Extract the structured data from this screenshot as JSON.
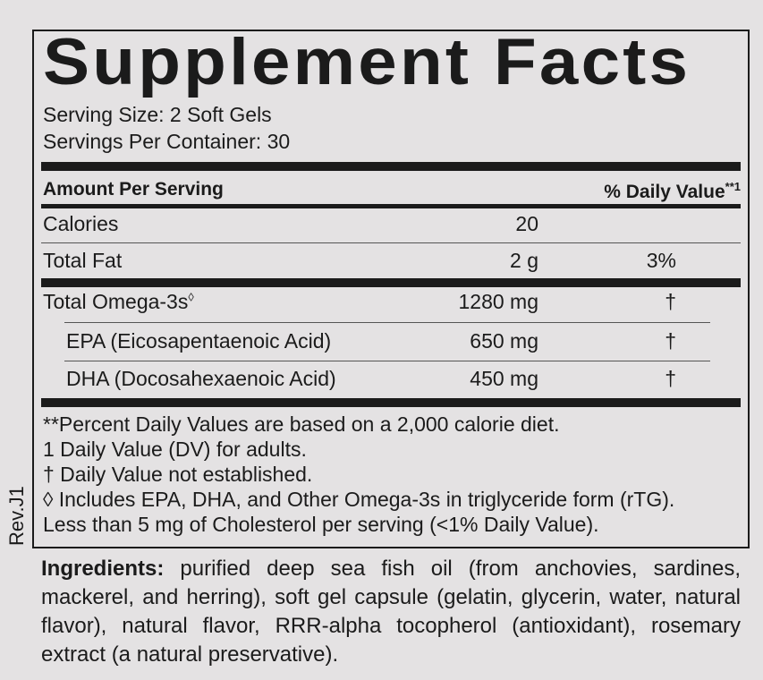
{
  "title": "Supplement Facts",
  "serving_size": "Serving Size: 2 Soft Gels",
  "servings_per_container": "Servings Per Container: 30",
  "header": {
    "amount": "Amount Per Serving",
    "daily_value": "% Daily Value",
    "daily_value_mark": "**1"
  },
  "rows": [
    {
      "label": "Calories",
      "amount": "20",
      "dv": ""
    },
    {
      "label": "Total Fat",
      "amount": "2 g",
      "dv": "3%"
    },
    {
      "label": "Total Omega-3s",
      "mark": "◊",
      "amount": "1280 mg",
      "dv": "†"
    },
    {
      "label": "EPA (Eicosapentaenoic Acid)",
      "amount": "650 mg",
      "dv": "†"
    },
    {
      "label": "DHA (Docosahexaenoic Acid)",
      "amount": "450 mg",
      "dv": "†"
    }
  ],
  "footnotes": [
    "**Percent Daily Values are based on a 2,000 calorie diet.",
    "1 Daily Value (DV) for adults.",
    "† Daily Value not established.",
    "◊ Includes EPA, DHA, and Other Omega-3s in triglyceride form (rTG).",
    "Less than 5 mg of Cholesterol per serving (<1% Daily Value)."
  ],
  "revision": "Rev.J1",
  "ingredients": {
    "heading": "Ingredients:",
    "text": "purified deep sea fish oil (from anchovies, sardines, mackerel, and herring), soft gel capsule (gelatin, glycerin, water, natural flavor), natural flavor, RRR-alpha tocopherol (antioxidant), rosemary extract (a natural preservative)."
  }
}
